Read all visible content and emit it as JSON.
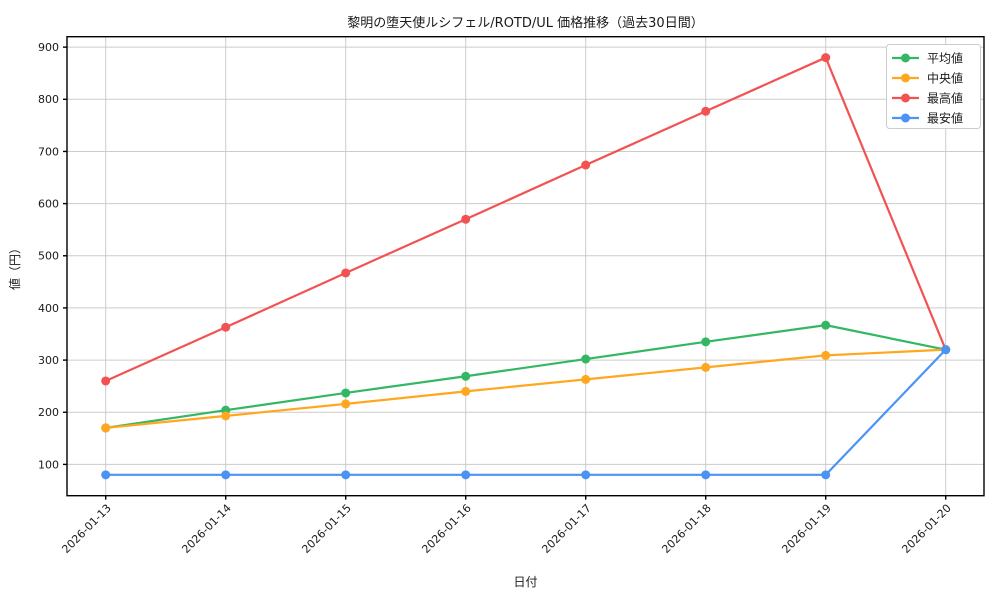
{
  "chart_data": {
    "type": "line",
    "title": "黎明の堕天使ルシフェル/ROTD/UL 価格推移（過去30日間）",
    "xlabel": "日付",
    "ylabel": "値（円）",
    "categories": [
      "2026-01-13",
      "2026-01-14",
      "2026-01-15",
      "2026-01-16",
      "2026-01-17",
      "2026-01-18",
      "2026-01-19",
      "2026-01-20"
    ],
    "series": [
      {
        "key": "average",
        "name": "平均値",
        "color": "#34b764",
        "values": [
          170,
          204,
          237,
          269,
          302,
          335,
          367,
          320
        ]
      },
      {
        "key": "median",
        "name": "中央値",
        "color": "#ffa71e",
        "values": [
          170,
          193,
          216,
          240,
          263,
          286,
          309,
          320
        ]
      },
      {
        "key": "max",
        "name": "最高値",
        "color": "#f25252",
        "values": [
          260,
          363,
          467,
          570,
          674,
          777,
          880,
          320
        ]
      },
      {
        "key": "min",
        "name": "最安値",
        "color": "#4b93f5",
        "values": [
          80,
          80,
          80,
          80,
          80,
          80,
          80,
          320
        ]
      }
    ],
    "ylim": [
      40,
      920
    ],
    "yticks": [
      100,
      200,
      300,
      400,
      500,
      600,
      700,
      800,
      900
    ],
    "grid": true,
    "grid_color": "#cccccc",
    "spine_color": "#000000",
    "background": "#ffffff",
    "legend_position": "top-right",
    "x_tick_rotation_deg": 45
  }
}
